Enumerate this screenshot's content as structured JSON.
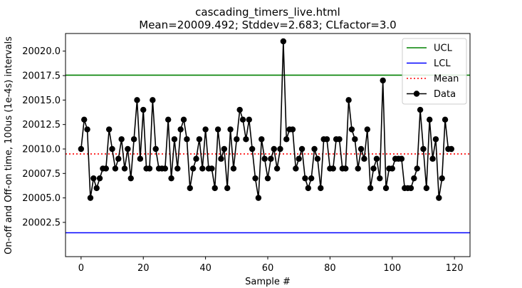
{
  "chart_data": {
    "type": "line",
    "title_lines": [
      "cascading_timers_live.html",
      "Mean=20009.492; Stddev=2.683; CLfactor=3.0"
    ],
    "xlabel": "Sample #",
    "ylabel": "On-off and Off-on time, 100us (1e-4s) intervals",
    "xlim": [
      -5,
      125
    ],
    "ylim": [
      19999.0,
      20021.8
    ],
    "xticks": [
      0,
      20,
      40,
      60,
      80,
      100,
      120
    ],
    "xtick_labels": [
      "0",
      "20",
      "40",
      "60",
      "80",
      "100",
      "120"
    ],
    "yticks": [
      20002.5,
      20005.0,
      20007.5,
      20010.0,
      20012.5,
      20015.0,
      20017.5,
      20020.0
    ],
    "ytick_labels": [
      "20002.5",
      "20005.0",
      "20007.5",
      "20010.0",
      "20012.5",
      "20015.0",
      "20017.5",
      "20020.0"
    ],
    "grid": false,
    "legend_position": "top-right",
    "reference_lines": [
      {
        "name": "UCL",
        "y": 20017.54,
        "color": "#008000",
        "style": "solid"
      },
      {
        "name": "LCL",
        "y": 20001.44,
        "color": "#0000ff",
        "style": "solid"
      },
      {
        "name": "Mean",
        "y": 20009.492,
        "color": "#ff0000",
        "style": "dotted"
      }
    ],
    "series": [
      {
        "name": "Data",
        "color": "#000000",
        "marker": "circle",
        "x": [
          0,
          1,
          2,
          3,
          4,
          5,
          6,
          7,
          8,
          9,
          10,
          11,
          12,
          13,
          14,
          15,
          16,
          17,
          18,
          19,
          20,
          21,
          22,
          23,
          24,
          25,
          26,
          27,
          28,
          29,
          30,
          31,
          32,
          33,
          34,
          35,
          36,
          37,
          38,
          39,
          40,
          41,
          42,
          43,
          44,
          45,
          46,
          47,
          48,
          49,
          50,
          51,
          52,
          53,
          54,
          55,
          56,
          57,
          58,
          59,
          60,
          61,
          62,
          63,
          64,
          65,
          66,
          67,
          68,
          69,
          70,
          71,
          72,
          73,
          74,
          75,
          76,
          77,
          78,
          79,
          80,
          81,
          82,
          83,
          84,
          85,
          86,
          87,
          88,
          89,
          90,
          91,
          92,
          93,
          94,
          95,
          96,
          97,
          98,
          99,
          100,
          101,
          102,
          103,
          104,
          105,
          106,
          107,
          108,
          109,
          110,
          111,
          112,
          113,
          114,
          115,
          116,
          117,
          118,
          119
        ],
        "values": [
          20010,
          20013,
          20012,
          20005,
          20007,
          20006,
          20007,
          20008,
          20008,
          20012,
          20010,
          20008,
          20009,
          20011,
          20008,
          20010,
          20007,
          20011,
          20015,
          20009,
          20014,
          20008,
          20008,
          20015,
          20010,
          20008,
          20008,
          20008,
          20013,
          20007,
          20011,
          20008,
          20012,
          20013,
          20011,
          20006,
          20008,
          20009,
          20011,
          20008,
          20012,
          20008,
          20008,
          20006,
          20012,
          20009,
          20010,
          20006,
          20012,
          20008,
          20011,
          20014,
          20013,
          20011,
          20013,
          20010,
          20007,
          20005,
          20011,
          20009,
          20007,
          20009,
          20010,
          20008,
          20010,
          20021,
          20011,
          20012,
          20012,
          20008,
          20009,
          20010,
          20007,
          20006,
          20007,
          20010,
          20009,
          20006,
          20011,
          20011,
          20008,
          20008,
          20011,
          20011,
          20008,
          20008,
          20015,
          20012,
          20011,
          20008,
          20010,
          20009,
          20012,
          20006,
          20008,
          20009,
          20007,
          20017,
          20006,
          20008,
          20008,
          20009,
          20009,
          20009,
          20006,
          20006,
          20006,
          20007,
          20008,
          20014,
          20010,
          20006,
          20013,
          20009,
          20011,
          20005,
          20007,
          20013,
          20010,
          20010
        ]
      }
    ],
    "legend": [
      "UCL",
      "LCL",
      "Mean",
      "Data"
    ]
  }
}
